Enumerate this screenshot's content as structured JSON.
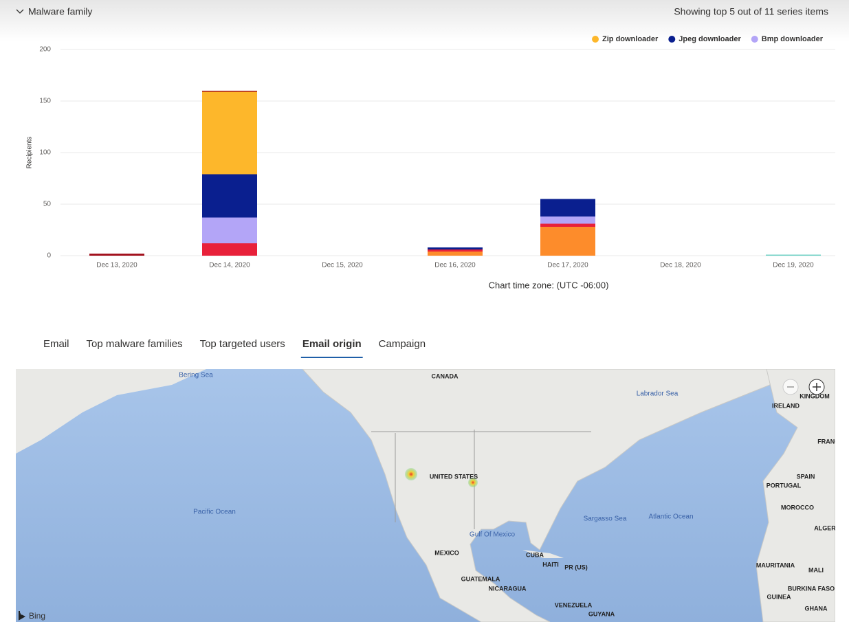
{
  "section": {
    "title": "Malware family",
    "summary": "Showing top 5 out of 11 series items"
  },
  "chart_data": {
    "type": "stacked_bar",
    "y_label": "Recipients",
    "note": "Chart time zone: (UTC -06:00)",
    "categories": [
      "Dec 13, 2020",
      "Dec 14, 2020",
      "Dec 15, 2020",
      "Dec 16, 2020",
      "Dec 17, 2020",
      "Dec 18, 2020",
      "Dec 19, 2020"
    ],
    "series": [
      {
        "color": "#fd8c2b",
        "values": [
          0,
          0,
          0,
          4,
          28,
          0,
          0
        ]
      },
      {
        "color": "#e8213a",
        "values": [
          0,
          12,
          0,
          2,
          3,
          0,
          0
        ]
      },
      {
        "name": "Bmp downloader",
        "color": "#b3a5f7",
        "values": [
          0,
          25,
          0,
          0,
          7,
          0,
          0
        ]
      },
      {
        "name": "Jpeg downloader",
        "color": "#0a1f8f",
        "values": [
          0,
          42,
          0,
          2,
          17,
          0,
          0
        ]
      },
      {
        "name": "Zip downloader",
        "color": "#fdb72b",
        "values": [
          0,
          80,
          0,
          0,
          0,
          0,
          0
        ]
      },
      {
        "color": "#a3121e",
        "values": [
          2,
          1,
          0,
          0,
          0,
          0,
          0
        ]
      },
      {
        "color": "#6fd1c6",
        "values": [
          0,
          0,
          0,
          0,
          0,
          0,
          1
        ]
      }
    ],
    "ylim": [
      0,
      200
    ],
    "yticks": [
      0,
      50,
      100,
      150,
      200
    ],
    "grid": true,
    "legend": "top-right"
  },
  "tabs": {
    "items": [
      "Email",
      "Top malware families",
      "Top targeted users",
      "Email origin",
      "Campaign"
    ],
    "active_index": 3
  },
  "map": {
    "labels": [
      "Bering Sea",
      "CANADA",
      "Labrador Sea",
      "KINGDOM",
      "IRELAND",
      "FRANC",
      "SPAIN",
      "PORTUGAL",
      "MOROCCO",
      "ALGER",
      "UNITED STATES",
      "Pacific Ocean",
      "Gulf Of Mexico",
      "Sargasso Sea",
      "Atlantic Ocean",
      "MEXICO",
      "CUBA",
      "HAITI",
      "PR (US)",
      "MAURITANIA",
      "MALI",
      "GUATEMALA",
      "NICARAGUA",
      "BURKINA FASO",
      "GUINEA",
      "GHANA",
      "VENEZUELA",
      "GUYANA"
    ],
    "attribution": "Bing"
  }
}
